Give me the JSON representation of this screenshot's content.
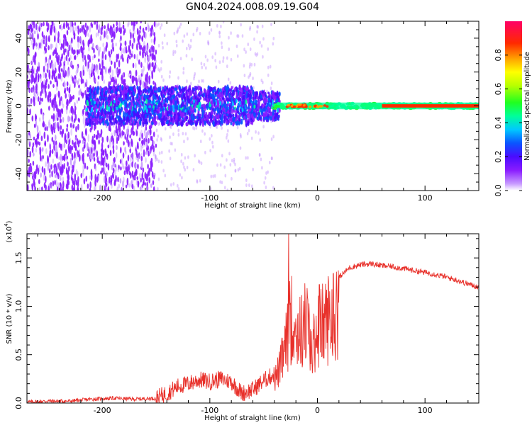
{
  "title": "GN04.2024.008.09.19.G04",
  "chart_data": [
    {
      "type": "heatmap",
      "xlabel": "Height of straight line (km)",
      "ylabel": "Frequency (Hz)",
      "xlim": [
        -270,
        150
      ],
      "ylim": [
        -50,
        50
      ],
      "x_ticks": [
        -200,
        -100,
        0,
        100
      ],
      "y_ticks": [
        -40,
        -20,
        0,
        20,
        40
      ],
      "colorbar": {
        "label": "Normalized spectral amplitude",
        "range": [
          0.0,
          1.0
        ],
        "ticks": [
          "0.0",
          "0.2",
          "0.4",
          "0.6",
          "0.8"
        ],
        "colors": [
          "#ffffff",
          "#b56bff",
          "#7a00ff",
          "#3a1cff",
          "#0066ff",
          "#00e5ff",
          "#00ff80",
          "#4cff00",
          "#ffff00",
          "#ff8c00",
          "#ff1f00",
          "#ff0060"
        ]
      },
      "description_series": [
        {
          "name": "noise",
          "x_range": [
            -270,
            -150
          ],
          "freq_spread": 50,
          "amplitude": 0.15
        },
        {
          "name": "broadband",
          "x_range": [
            -210,
            -40
          ],
          "freq_spread": 10,
          "amplitude": 0.35
        },
        {
          "name": "signal",
          "x_range": [
            -40,
            150
          ],
          "freq": 0,
          "amplitude": 0.95
        }
      ]
    },
    {
      "type": "line",
      "xlabel": "Height of straight line (km)",
      "ylabel": "SNR (10 * v/v)",
      "y_multiplier": "(x10^4)",
      "xlim": [
        -270,
        150
      ],
      "ylim": [
        0,
        1.75
      ],
      "x_ticks": [
        -200,
        -100,
        0,
        100
      ],
      "y_ticks": [
        "0.0",
        "0.5",
        "1.0",
        "1.5"
      ],
      "color": "#e8302a",
      "x": [
        -270,
        -250,
        -230,
        -210,
        -190,
        -170,
        -150,
        -140,
        -130,
        -120,
        -110,
        -100,
        -90,
        -80,
        -70,
        -60,
        -50,
        -40,
        -35,
        -30,
        -25,
        -20,
        -15,
        -10,
        -5,
        0,
        5,
        10,
        15,
        20,
        25,
        30,
        40,
        50,
        60,
        70,
        80,
        90,
        100,
        110,
        120,
        130,
        140,
        150
      ],
      "values": [
        0.01,
        0.02,
        0.02,
        0.04,
        0.05,
        0.04,
        0.05,
        0.1,
        0.17,
        0.2,
        0.24,
        0.22,
        0.25,
        0.22,
        0.1,
        0.14,
        0.23,
        0.3,
        0.45,
        0.7,
        1.1,
        0.95,
        0.9,
        1.1,
        0.6,
        1.05,
        1.0,
        1.1,
        1.15,
        1.3,
        1.35,
        1.4,
        1.43,
        1.44,
        1.42,
        1.41,
        1.39,
        1.37,
        1.35,
        1.33,
        1.3,
        1.27,
        1.23,
        1.2
      ]
    }
  ]
}
